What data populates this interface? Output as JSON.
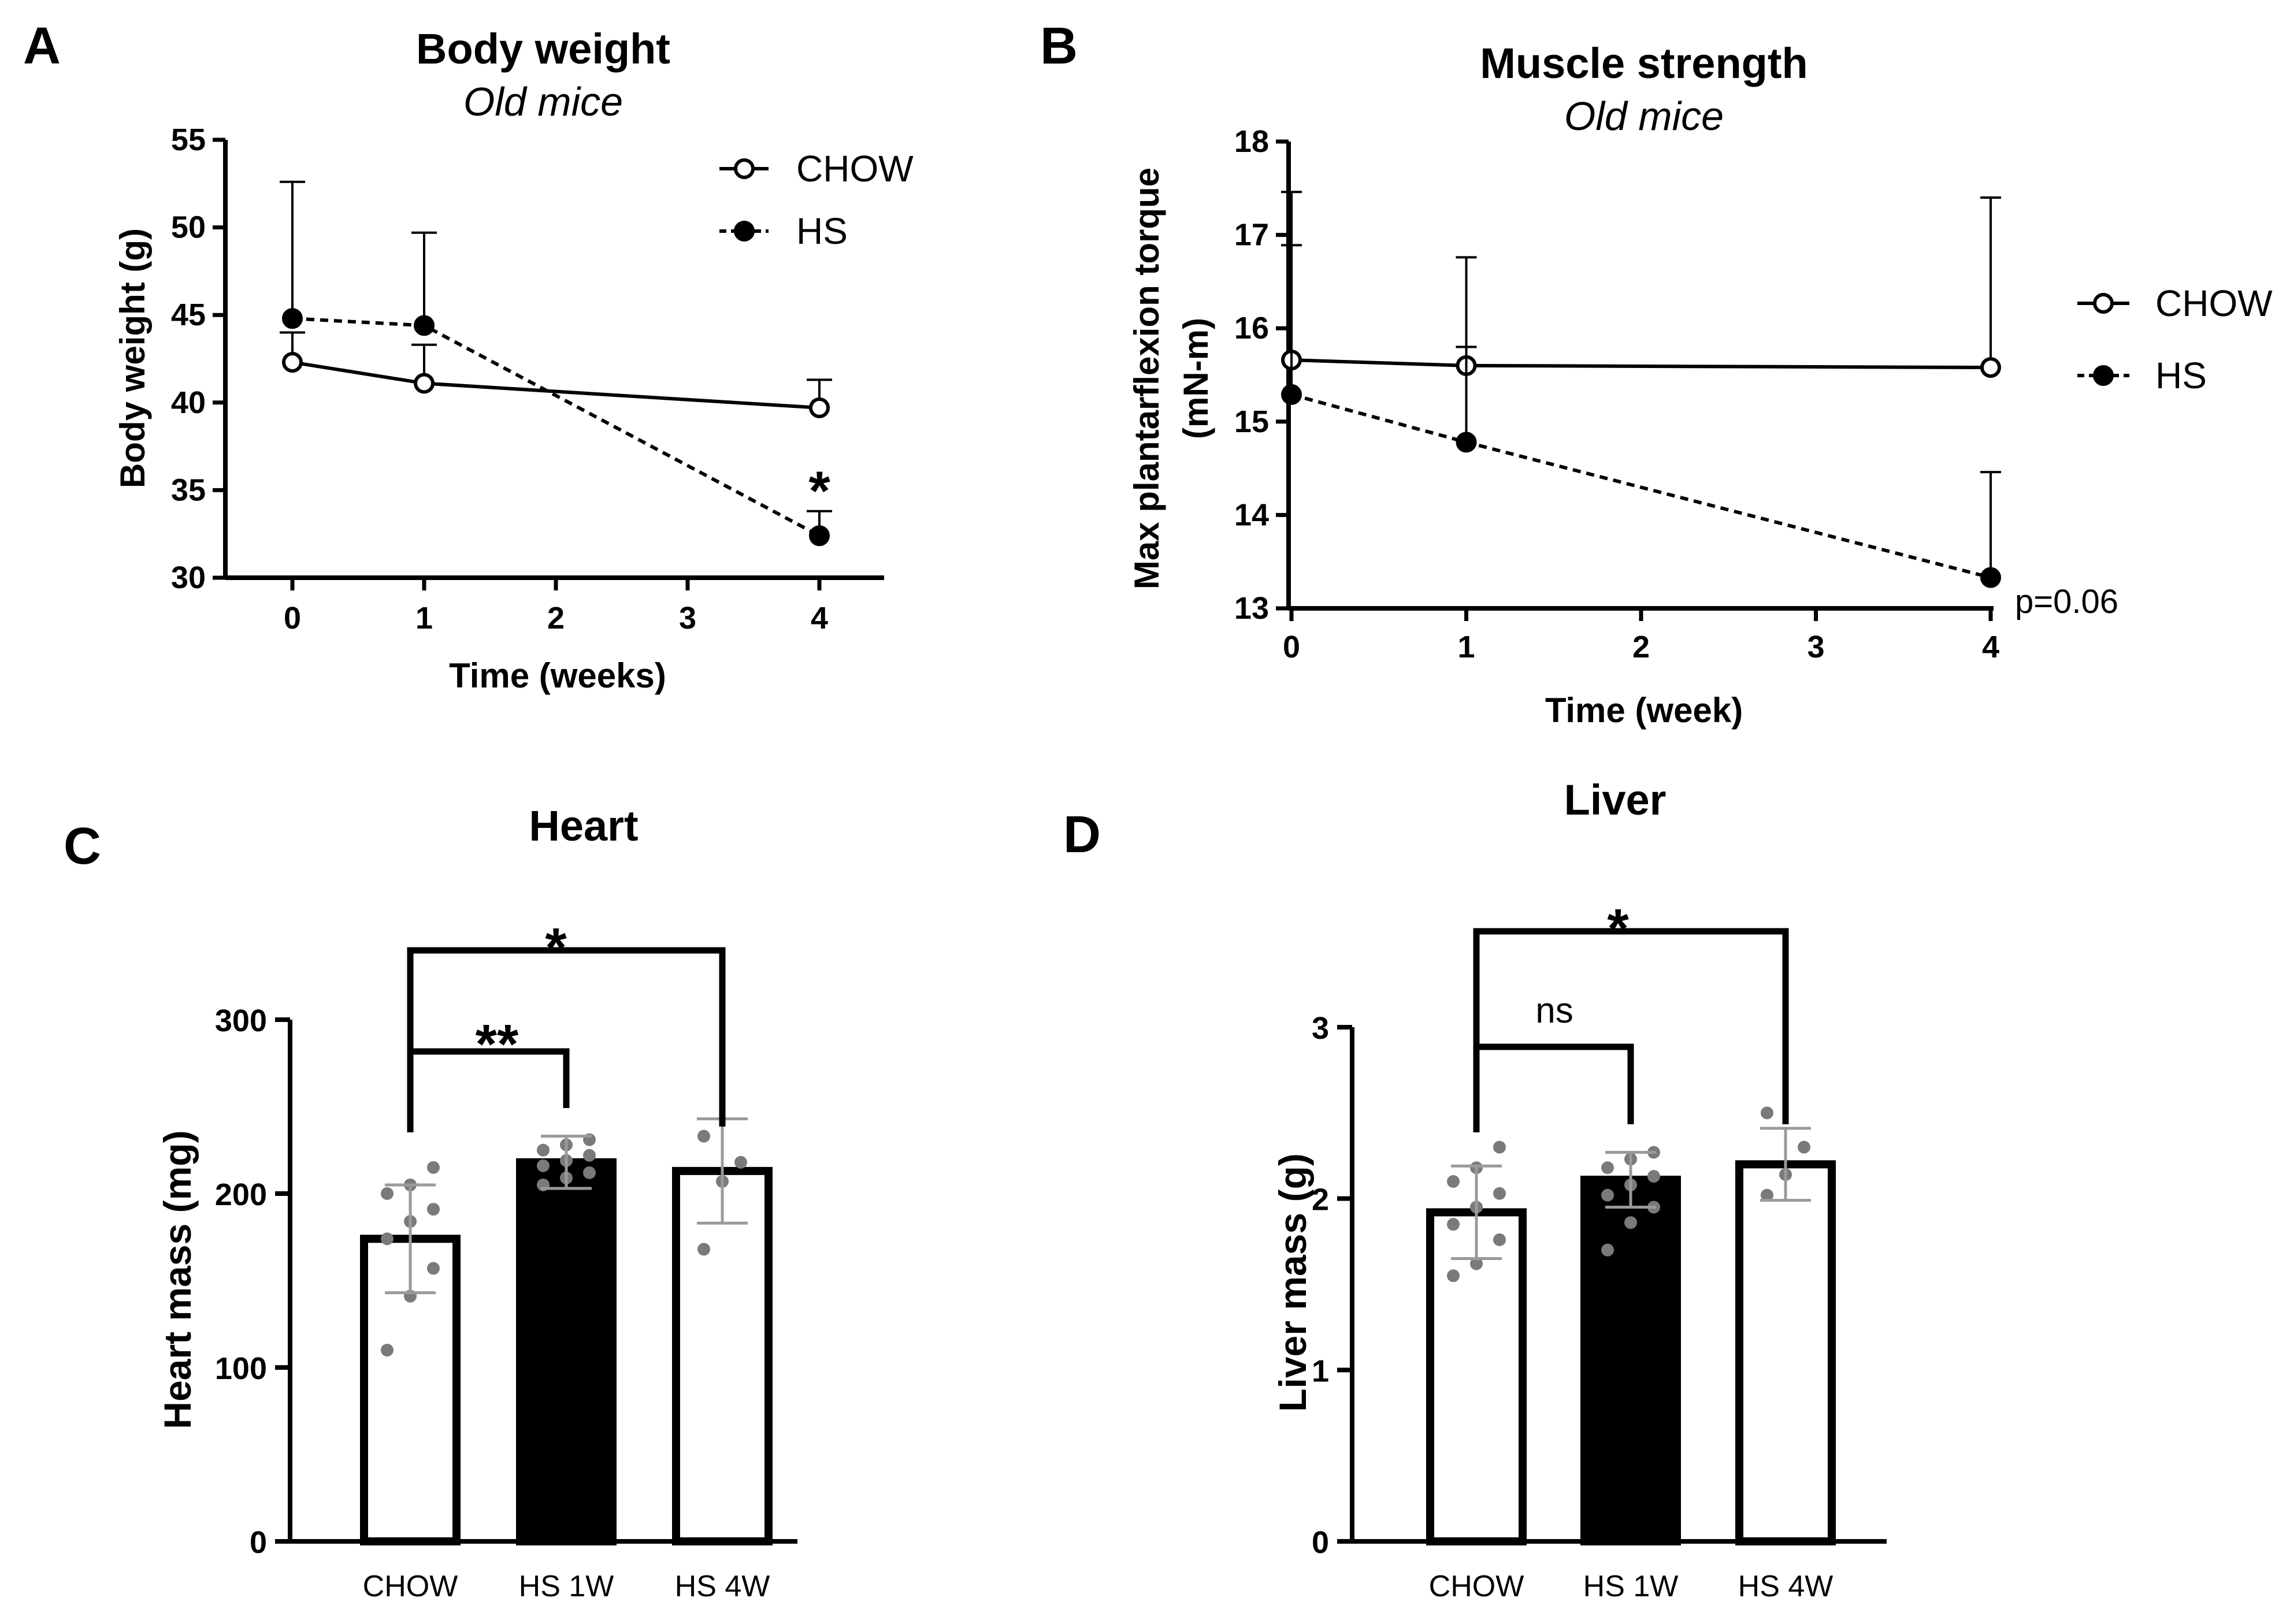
{
  "chart_data": [
    {
      "id": "A",
      "panel_label": "A",
      "type": "line",
      "title": "Body weight",
      "subtitle": "Old mice",
      "xlabel": "Time (weeks)",
      "ylabel": "Body weight (g)",
      "xlim": [
        -0.5,
        4.5
      ],
      "ylim": [
        30,
        55
      ],
      "xticks": [
        0,
        1,
        2,
        3,
        4
      ],
      "yticks": [
        30,
        35,
        40,
        45,
        50,
        55
      ],
      "legend_position": "top-right",
      "series": [
        {
          "name": "CHOW",
          "marker": "open-circle",
          "line": "solid",
          "x": [
            0,
            1,
            4
          ],
          "y": [
            42.3,
            41.1,
            39.7
          ],
          "err_up": [
            1.7,
            2.2,
            1.6
          ]
        },
        {
          "name": "HS",
          "marker": "filled-circle",
          "line": "dotted",
          "x": [
            0,
            4,
            1
          ],
          "y": [
            44.8,
            32.4,
            44.4
          ],
          "err_up": [
            7.8,
            1.4,
            5.3
          ]
        }
      ],
      "annotations": [
        {
          "text": "*",
          "x": 4,
          "y": 35.2
        }
      ]
    },
    {
      "id": "B",
      "panel_label": "B",
      "type": "line",
      "title": "Muscle strength",
      "subtitle": "Old mice",
      "xlabel": "Time (week)",
      "ylabel": "Max plantarflexion torque",
      "ylabel2": "(mN-m)",
      "xlim": [
        0,
        4
      ],
      "ylim": [
        13,
        18
      ],
      "xticks": [
        0,
        1,
        2,
        3,
        4
      ],
      "yticks": [
        13,
        14,
        15,
        16,
        17,
        18
      ],
      "legend_position": "right",
      "series": [
        {
          "name": "CHOW",
          "marker": "open-circle",
          "line": "solid",
          "x": [
            0,
            1,
            4
          ],
          "y": [
            15.66,
            15.6,
            15.58
          ],
          "err_up": [
            1.8,
            0.2,
            1.82
          ]
        },
        {
          "name": "HS",
          "marker": "filled-circle",
          "line": "dotted",
          "x": [
            0,
            1,
            4
          ],
          "y": [
            15.29,
            14.78,
            13.33
          ],
          "err_up": [
            1.6,
            1.98,
            1.13
          ]
        }
      ],
      "annotations": [
        {
          "text": "p=0.06",
          "x": 4,
          "y": 13.23
        }
      ]
    },
    {
      "id": "C",
      "panel_label": "C",
      "type": "bar",
      "title": "Heart",
      "ylabel": "Heart mass (mg)",
      "ylim": [
        0,
        300
      ],
      "yticks": [
        0,
        100,
        200,
        300
      ],
      "categories": [
        "CHOW",
        "HS 1W",
        "HS 4W"
      ],
      "values": [
        174,
        218,
        213
      ],
      "sd": [
        31,
        15,
        30
      ],
      "bar_fill": [
        "#ffffff",
        "#000000",
        "#ffffff"
      ],
      "points": [
        [
          110,
          141,
          157,
          174,
          184,
          191,
          200,
          205,
          215
        ],
        [
          205,
          209,
          212,
          216,
          219,
          222,
          225,
          228,
          231
        ],
        [
          168,
          207,
          218,
          233
        ]
      ],
      "brackets": [
        {
          "from": 0,
          "to": 1,
          "label": "**"
        },
        {
          "from": 0,
          "to": 2,
          "label": "*"
        }
      ]
    },
    {
      "id": "D",
      "panel_label": "D",
      "type": "bar",
      "title": "Liver",
      "ylabel": "Liver mass (g)",
      "ylim": [
        0,
        3
      ],
      "yticks": [
        0,
        1,
        2,
        3
      ],
      "categories": [
        "CHOW",
        "HS 1W",
        "HS 4W"
      ],
      "values": [
        1.92,
        2.11,
        2.2
      ],
      "sd": [
        0.27,
        0.16,
        0.21
      ],
      "bar_fill": [
        "#ffffff",
        "#000000",
        "#ffffff"
      ],
      "points": [
        [
          1.55,
          1.62,
          1.76,
          1.85,
          1.95,
          2.03,
          2.1,
          2.18,
          2.3
        ],
        [
          1.7,
          1.86,
          1.95,
          2.02,
          2.08,
          2.13,
          2.18,
          2.23,
          2.27
        ],
        [
          2.02,
          2.14,
          2.3,
          2.5
        ]
      ],
      "brackets": [
        {
          "from": 0,
          "to": 1,
          "label": "ns"
        },
        {
          "from": 0,
          "to": 2,
          "label": "*"
        }
      ]
    }
  ]
}
